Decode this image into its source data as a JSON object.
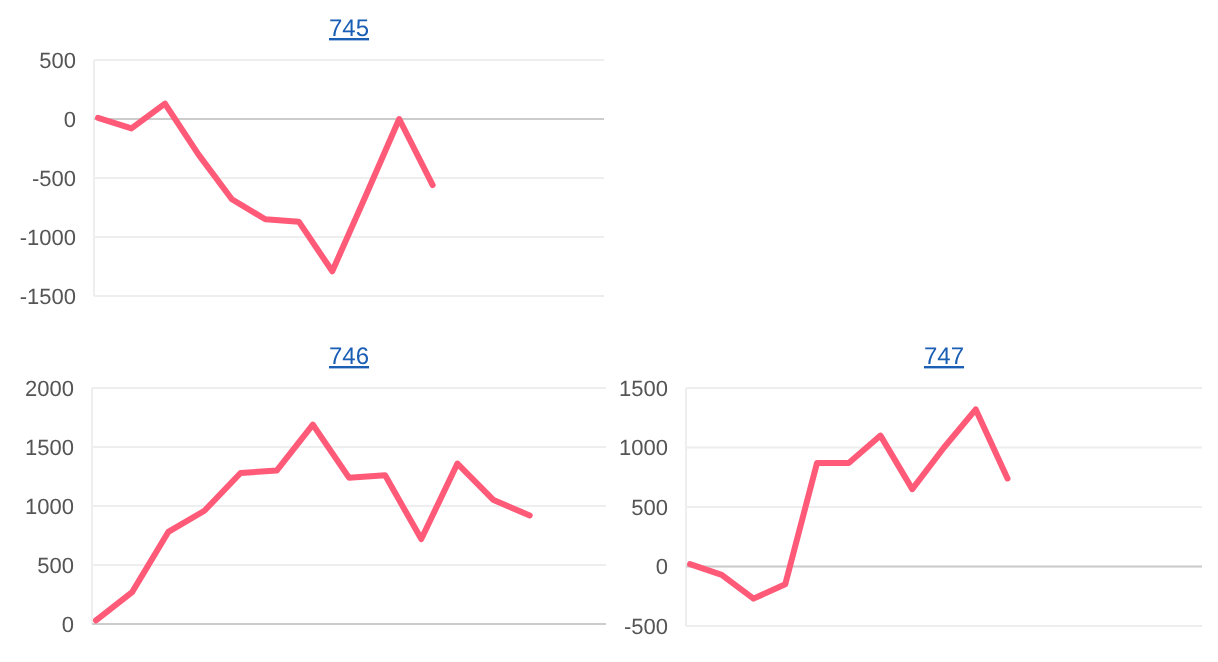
{
  "chart_data": [
    {
      "type": "line",
      "title": "745",
      "categories": [
        null,
        null,
        null,
        null,
        null,
        null,
        null,
        null,
        null,
        null,
        null,
        null,
        null,
        null,
        null,
        null
      ],
      "series": [
        {
          "color": "#ff5a78",
          "values": [
            10,
            -80,
            130,
            -300,
            -680,
            -850,
            -870,
            -1290,
            -650,
            0,
            -560,
            null,
            null,
            null,
            null,
            null
          ]
        }
      ],
      "ylim": [
        -1500,
        500
      ],
      "yticks": [
        -1500,
        -1000,
        -500,
        0,
        500
      ],
      "grid": "y",
      "tick_labels": "y",
      "marker": "none"
    },
    {
      "type": "line",
      "title": "746",
      "categories": [
        null,
        null,
        null,
        null,
        null,
        null,
        null,
        null,
        null,
        null,
        null,
        null,
        null,
        null,
        null
      ],
      "series": [
        {
          "color": "#ff5a78",
          "values": [
            30,
            270,
            780,
            960,
            1280,
            1300,
            1690,
            1240,
            1260,
            720,
            1360,
            1050,
            920,
            null,
            null
          ]
        }
      ],
      "ylim": [
        0,
        2000
      ],
      "yticks": [
        0,
        500,
        1000,
        1500,
        2000
      ],
      "grid": "y",
      "tick_labels": "y",
      "marker": "none"
    },
    {
      "type": "line",
      "title": "747",
      "categories": [
        null,
        null,
        null,
        null,
        null,
        null,
        null,
        null,
        null,
        null,
        null,
        null,
        null,
        null,
        null,
        null,
        null
      ],
      "series": [
        {
          "color": "#ff5a78",
          "values": [
            20,
            -70,
            -270,
            -150,
            870,
            870,
            1100,
            650,
            1000,
            1320,
            740,
            null,
            null,
            null,
            null,
            null,
            null
          ]
        }
      ],
      "ylim": [
        -500,
        1500
      ],
      "yticks": [
        -500,
        0,
        500,
        1000,
        1500
      ],
      "grid": "y",
      "tick_labels": "y",
      "marker": "none"
    }
  ]
}
